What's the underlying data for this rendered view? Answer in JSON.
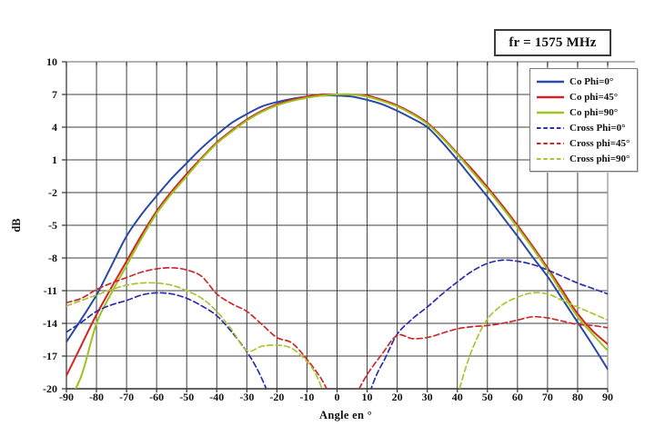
{
  "frequency_box": {
    "label": "fr = 1575 MHz"
  },
  "chart_data": {
    "type": "line",
    "title": "fr = 1575 MHz",
    "xlabel": "Angle en °",
    "ylabel": "dB",
    "xlim": [
      -90,
      90
    ],
    "ylim": [
      -20,
      10
    ],
    "x_ticks": [
      -90,
      -80,
      -70,
      -60,
      -50,
      -40,
      -30,
      -20,
      -10,
      0,
      10,
      20,
      30,
      40,
      50,
      60,
      70,
      80,
      90
    ],
    "y_ticks": [
      10,
      7,
      4,
      1,
      -2,
      -5,
      -8,
      -11,
      -14,
      -17,
      -20
    ],
    "grid": true,
    "legend_position": "top-right",
    "colors": {
      "grid": "#404040",
      "frame_light": "#9a9a9a",
      "frame_dark": "#2f2f2f",
      "tick": "#333333"
    },
    "series": [
      {
        "name": "Co Phi=0°",
        "id": "co-phi-0",
        "color": "#2b49a5",
        "dash": false,
        "branches": [
          [
            [
              -90,
              -15.7
            ],
            [
              -85,
              -13.6
            ],
            [
              -80,
              -11.4
            ],
            [
              -75,
              -8.7
            ],
            [
              -70,
              -6.0
            ],
            [
              -65,
              -4.0
            ],
            [
              -60,
              -2.3
            ],
            [
              -55,
              -0.7
            ],
            [
              -50,
              0.7
            ],
            [
              -45,
              2.1
            ],
            [
              -40,
              3.3
            ],
            [
              -35,
              4.4
            ],
            [
              -30,
              5.2
            ],
            [
              -25,
              5.9
            ],
            [
              -20,
              6.3
            ],
            [
              -15,
              6.6
            ],
            [
              -10,
              6.8
            ],
            [
              -5,
              6.9
            ],
            [
              0,
              6.9
            ],
            [
              5,
              6.8
            ],
            [
              10,
              6.5
            ],
            [
              15,
              6.1
            ],
            [
              20,
              5.5
            ],
            [
              25,
              4.8
            ],
            [
              30,
              4.0
            ],
            [
              35,
              2.6
            ],
            [
              40,
              1.0
            ],
            [
              45,
              -0.7
            ],
            [
              50,
              -2.4
            ],
            [
              55,
              -4.2
            ],
            [
              60,
              -6.0
            ],
            [
              65,
              -7.9
            ],
            [
              70,
              -9.7
            ],
            [
              75,
              -11.8
            ],
            [
              80,
              -13.9
            ],
            [
              85,
              -16.0
            ],
            [
              90,
              -18.2
            ]
          ]
        ]
      },
      {
        "name": "Co phi=45°",
        "id": "co-phi-45",
        "color": "#d42525",
        "dash": false,
        "branches": [
          [
            [
              -90,
              -18.8
            ],
            [
              -85,
              -16.0
            ],
            [
              -80,
              -13.2
            ],
            [
              -75,
              -10.7
            ],
            [
              -70,
              -8.3
            ],
            [
              -65,
              -5.9
            ],
            [
              -60,
              -3.7
            ],
            [
              -55,
              -1.9
            ],
            [
              -50,
              -0.3
            ],
            [
              -45,
              1.2
            ],
            [
              -40,
              2.6
            ],
            [
              -35,
              3.7
            ],
            [
              -30,
              4.7
            ],
            [
              -25,
              5.5
            ],
            [
              -20,
              6.1
            ],
            [
              -15,
              6.5
            ],
            [
              -10,
              6.8
            ],
            [
              -5,
              7.0
            ],
            [
              0,
              7.0
            ],
            [
              5,
              7.0
            ],
            [
              10,
              6.9
            ],
            [
              15,
              6.5
            ],
            [
              20,
              6.0
            ],
            [
              25,
              5.3
            ],
            [
              30,
              4.4
            ],
            [
              35,
              3.1
            ],
            [
              40,
              1.6
            ],
            [
              45,
              0.1
            ],
            [
              50,
              -1.5
            ],
            [
              55,
              -3.2
            ],
            [
              60,
              -5.0
            ],
            [
              65,
              -6.9
            ],
            [
              70,
              -8.9
            ],
            [
              75,
              -11.0
            ],
            [
              80,
              -13.1
            ],
            [
              85,
              -14.7
            ],
            [
              90,
              -15.9
            ]
          ]
        ]
      },
      {
        "name": "Co phi=90°",
        "id": "co-phi-90",
        "color": "#9cc41f",
        "dash": false,
        "branches": [
          [
            [
              -90,
              -21.5
            ],
            [
              -85,
              -18.8
            ],
            [
              -80,
              -14.0
            ],
            [
              -75,
              -11.2
            ],
            [
              -70,
              -8.7
            ],
            [
              -65,
              -6.2
            ],
            [
              -60,
              -3.9
            ],
            [
              -55,
              -2.1
            ],
            [
              -50,
              -0.5
            ],
            [
              -45,
              1.1
            ],
            [
              -40,
              2.5
            ],
            [
              -35,
              3.6
            ],
            [
              -30,
              4.6
            ],
            [
              -25,
              5.4
            ],
            [
              -20,
              6.0
            ],
            [
              -15,
              6.4
            ],
            [
              -10,
              6.7
            ],
            [
              -5,
              6.9
            ],
            [
              0,
              7.0
            ],
            [
              5,
              7.0
            ],
            [
              10,
              6.8
            ],
            [
              15,
              6.4
            ],
            [
              20,
              5.9
            ],
            [
              25,
              5.2
            ],
            [
              30,
              4.3
            ],
            [
              35,
              3.0
            ],
            [
              40,
              1.5
            ],
            [
              45,
              -0.1
            ],
            [
              50,
              -1.7
            ],
            [
              55,
              -3.4
            ],
            [
              60,
              -5.2
            ],
            [
              65,
              -7.1
            ],
            [
              70,
              -9.1
            ],
            [
              75,
              -11.3
            ],
            [
              80,
              -13.4
            ],
            [
              85,
              -15.0
            ],
            [
              90,
              -16.5
            ]
          ]
        ]
      },
      {
        "name": "Cross Phi=0°",
        "id": "cross-phi-0",
        "color": "#2a2fb0",
        "dash": true,
        "branches": [
          [
            [
              -90,
              -14.8
            ],
            [
              -85,
              -13.9
            ],
            [
              -80,
              -12.9
            ],
            [
              -75,
              -12.3
            ],
            [
              -70,
              -11.9
            ],
            [
              -65,
              -11.4
            ],
            [
              -60,
              -11.2
            ],
            [
              -55,
              -11.3
            ],
            [
              -50,
              -11.7
            ],
            [
              -45,
              -12.4
            ],
            [
              -40,
              -13.3
            ],
            [
              -35,
              -14.8
            ],
            [
              -30,
              -16.6
            ],
            [
              -26,
              -18.5
            ],
            [
              -22,
              -21.0
            ]
          ],
          [
            [
              10,
              -21.0
            ],
            [
              13,
              -18.8
            ],
            [
              16,
              -17.2
            ],
            [
              20,
              -15.0
            ],
            [
              25,
              -13.6
            ],
            [
              30,
              -12.5
            ],
            [
              35,
              -11.3
            ],
            [
              40,
              -10.2
            ],
            [
              45,
              -9.2
            ],
            [
              50,
              -8.5
            ],
            [
              55,
              -8.2
            ],
            [
              60,
              -8.3
            ],
            [
              65,
              -8.6
            ],
            [
              70,
              -9.1
            ],
            [
              75,
              -9.7
            ],
            [
              80,
              -10.3
            ],
            [
              85,
              -10.8
            ],
            [
              90,
              -11.3
            ]
          ]
        ]
      },
      {
        "name": "Cross phi=45°",
        "id": "cross-phi-45",
        "color": "#cc2a2a",
        "dash": true,
        "branches": [
          [
            [
              -90,
              -12.1
            ],
            [
              -85,
              -11.7
            ],
            [
              -80,
              -10.9
            ],
            [
              -75,
              -10.3
            ],
            [
              -70,
              -9.8
            ],
            [
              -65,
              -9.3
            ],
            [
              -60,
              -9.0
            ],
            [
              -55,
              -8.9
            ],
            [
              -50,
              -9.1
            ],
            [
              -45,
              -9.7
            ],
            [
              -40,
              -11.3
            ],
            [
              -35,
              -12.2
            ],
            [
              -30,
              -12.9
            ],
            [
              -25,
              -14.1
            ],
            [
              -20,
              -15.3
            ],
            [
              -15,
              -15.8
            ],
            [
              -10,
              -17.3
            ],
            [
              -5,
              -19.2
            ],
            [
              -2,
              -20.9
            ]
          ],
          [
            [
              6,
              -20.7
            ],
            [
              10,
              -18.7
            ],
            [
              15,
              -16.8
            ],
            [
              20,
              -15.1
            ],
            [
              25,
              -15.4
            ],
            [
              30,
              -15.3
            ],
            [
              35,
              -14.9
            ],
            [
              40,
              -14.5
            ],
            [
              45,
              -14.3
            ],
            [
              50,
              -14.2
            ],
            [
              55,
              -14.0
            ],
            [
              60,
              -13.7
            ],
            [
              65,
              -13.4
            ],
            [
              70,
              -13.5
            ],
            [
              75,
              -13.8
            ],
            [
              80,
              -14.1
            ],
            [
              85,
              -14.2
            ],
            [
              90,
              -14.4
            ]
          ]
        ]
      },
      {
        "name": "Cross phi=90°",
        "id": "cross-phi-90",
        "color": "#adc331",
        "dash": true,
        "branches": [
          [
            [
              -90,
              -12.4
            ],
            [
              -85,
              -11.9
            ],
            [
              -80,
              -11.4
            ],
            [
              -75,
              -10.9
            ],
            [
              -70,
              -10.5
            ],
            [
              -65,
              -10.3
            ],
            [
              -60,
              -10.3
            ],
            [
              -55,
              -10.5
            ],
            [
              -50,
              -11.0
            ],
            [
              -45,
              -11.7
            ],
            [
              -40,
              -12.9
            ],
            [
              -35,
              -14.6
            ],
            [
              -30,
              -16.5
            ],
            [
              -25,
              -16.1
            ],
            [
              -20,
              -16.0
            ],
            [
              -15,
              -16.3
            ],
            [
              -10,
              -17.5
            ],
            [
              -7,
              -18.7
            ],
            [
              -4,
              -20.7
            ]
          ],
          [
            [
              40,
              -20.7
            ],
            [
              43,
              -17.9
            ],
            [
              46,
              -15.7
            ],
            [
              50,
              -13.6
            ],
            [
              55,
              -12.3
            ],
            [
              60,
              -11.6
            ],
            [
              65,
              -11.2
            ],
            [
              70,
              -11.3
            ],
            [
              75,
              -11.9
            ],
            [
              80,
              -12.5
            ],
            [
              85,
              -13.1
            ],
            [
              90,
              -13.7
            ]
          ]
        ]
      }
    ]
  }
}
